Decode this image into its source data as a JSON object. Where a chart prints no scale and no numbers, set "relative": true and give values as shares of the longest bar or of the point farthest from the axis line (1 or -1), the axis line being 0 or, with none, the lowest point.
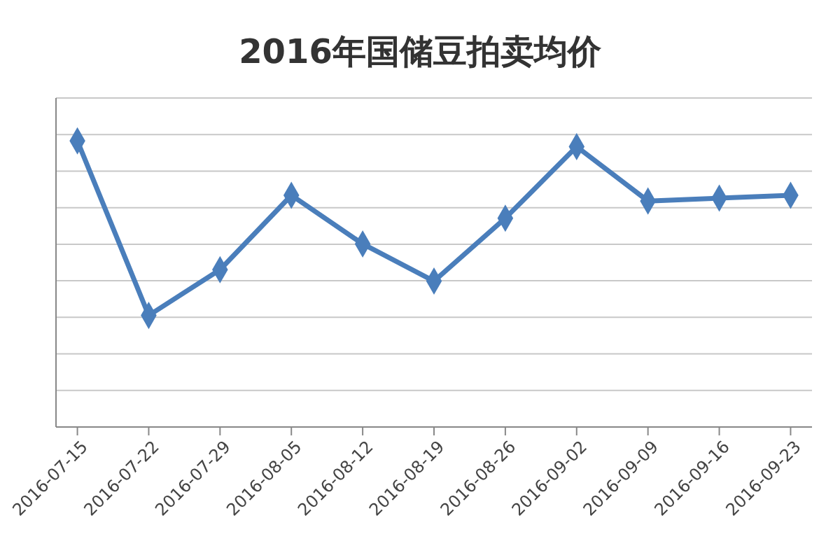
{
  "chart_data": {
    "type": "line",
    "title": "2016年国储豆拍卖均价",
    "categories": [
      "2016-07-15",
      "2016-07-22",
      "2016-07-29",
      "2016-08-05",
      "2016-08-12",
      "2016-08-19",
      "2016-08-26",
      "2016-09-02",
      "2016-09-09",
      "2016-09-16",
      "2016-09-23"
    ],
    "series": [
      {
        "color": "#4a7ebb",
        "values": [
          1,
          0.39,
          0.55,
          0.81,
          0.64,
          0.51,
          0.73,
          0.98,
          0.79,
          0.8,
          0.81
        ]
      }
    ],
    "relative": true,
    "grid": true,
    "marker": "diamond",
    "line_style": "solid"
  }
}
